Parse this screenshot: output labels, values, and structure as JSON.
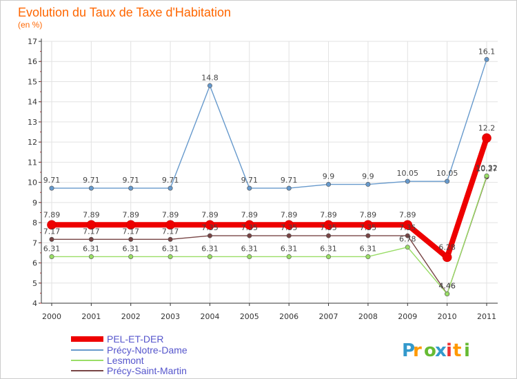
{
  "chart_data": {
    "type": "line",
    "title": "Evolution du Taux de Taxe d'Habitation",
    "subtitle": "(en %)",
    "xlabel": "",
    "ylabel": "",
    "x": [
      "2000",
      "2001",
      "2002",
      "2003",
      "2004",
      "2005",
      "2006",
      "2007",
      "2008",
      "2009",
      "2010",
      "2011"
    ],
    "ylim": [
      4,
      17
    ],
    "yticks": [
      4,
      5,
      6,
      7,
      8,
      9,
      10,
      11,
      12,
      13,
      14,
      15,
      16,
      17
    ],
    "grid": true,
    "legend_position": "bottom-left",
    "series": [
      {
        "name": "PEL-ET-DER",
        "color": "#ee0000",
        "values": [
          7.89,
          7.89,
          7.89,
          7.89,
          7.89,
          7.89,
          7.89,
          7.89,
          7.89,
          7.89,
          6.28,
          12.2
        ],
        "labels": [
          "7.89",
          "7.89",
          "7.89",
          "7.89",
          "7.89",
          "7.89",
          "7.89",
          "7.89",
          "7.89",
          "7.89",
          "6.28",
          "12.2"
        ]
      },
      {
        "name": "Précy-Notre-Dame",
        "color": "#6699cc",
        "values": [
          9.71,
          9.71,
          9.71,
          9.71,
          14.8,
          9.71,
          9.71,
          9.9,
          9.9,
          10.05,
          10.05,
          16.1
        ],
        "labels": [
          "9.71",
          "9.71",
          "9.71",
          "9.71",
          "14.8",
          "9.71",
          "9.71",
          "9.9",
          "9.9",
          "10.05",
          "10.05",
          "16.1"
        ]
      },
      {
        "name": "Lesmont",
        "color": "#99dd66",
        "values": [
          6.31,
          6.31,
          6.31,
          6.31,
          6.31,
          6.31,
          6.31,
          6.31,
          6.31,
          6.78,
          4.46,
          10.32
        ],
        "labels": [
          "6.31",
          "6.31",
          "6.31",
          "6.31",
          "6.31",
          "6.31",
          "6.31",
          "6.31",
          "6.31",
          "6.78",
          "4.46",
          "10.32"
        ]
      },
      {
        "name": "Précy-Saint-Martin",
        "color": "#774444",
        "values": [
          7.17,
          7.17,
          7.17,
          7.17,
          7.35,
          7.35,
          7.35,
          7.35,
          7.35,
          7.35,
          4.46,
          10.27
        ],
        "labels": [
          "7.17",
          "7.17",
          "7.17",
          "7.17",
          "7.35",
          "7.35",
          "7.35",
          "7.35",
          "7.35",
          "7.35",
          "4.46",
          "10.27"
        ]
      }
    ]
  },
  "logo": {
    "text": "Proxiti",
    "colors": [
      "#3399cc",
      "#ff9900",
      "#66bb33",
      "#3399cc",
      "#ee3333",
      "#ff9900",
      "#66bb33"
    ]
  }
}
